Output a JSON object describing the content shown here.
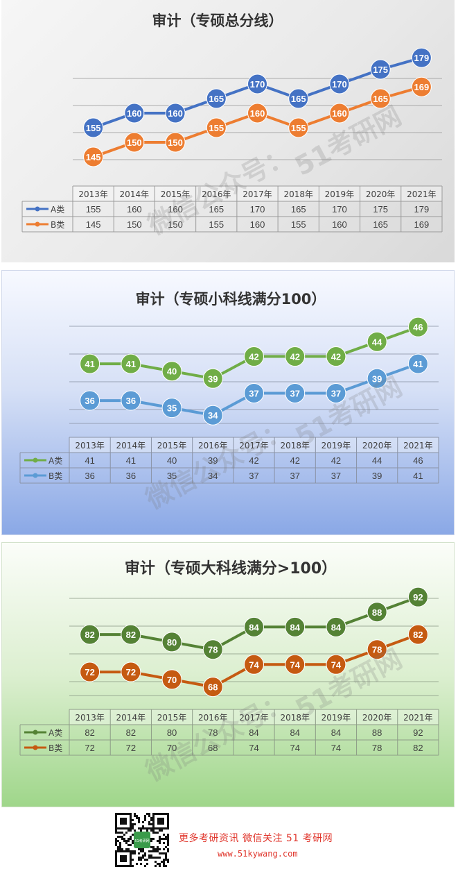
{
  "charts": [
    {
      "title": "审计（专硕总分线）",
      "colors": {
        "A": "#4472c4",
        "B": "#ed7d31",
        "grid": "#9a9a9a",
        "text": "#404040"
      },
      "watermark": [
        "51考研网",
        "微信公众号："
      ],
      "chart_data": {
        "type": "line",
        "categories": [
          "2013年",
          "2014年",
          "2015年",
          "2016年",
          "2017年",
          "2018年",
          "2019年",
          "2020年",
          "2021年"
        ],
        "series": [
          {
            "name": "A类",
            "values": [
              155,
              160,
              160,
              165,
              170,
              165,
              170,
              175,
              179
            ]
          },
          {
            "name": "B类",
            "values": [
              145,
              150,
              150,
              155,
              160,
              155,
              160,
              165,
              169
            ]
          }
        ],
        "ylim": [
          135,
          185
        ],
        "grid": true,
        "legend": "data-table"
      }
    },
    {
      "title": "审计（专硕小科线满分100）",
      "colors": {
        "A": "#70ad47",
        "B": "#5b9bd5",
        "grid": "#8a93a6",
        "text": "#404040"
      },
      "watermark": [
        "51考研网",
        "微信公众号："
      ],
      "chart_data": {
        "type": "line",
        "categories": [
          "2013年",
          "2014年",
          "2015年",
          "2016年",
          "2017年",
          "2018年",
          "2019年",
          "2020年",
          "2021年"
        ],
        "series": [
          {
            "name": "A类",
            "values": [
              41,
              41,
              40,
              39,
              42,
              42,
              42,
              44,
              46
            ]
          },
          {
            "name": "B类",
            "values": [
              36,
              36,
              35,
              34,
              37,
              37,
              37,
              39,
              41
            ]
          }
        ],
        "ylim": [
          31,
          48
        ],
        "grid": true,
        "legend": "data-table"
      }
    },
    {
      "title": "审计（专硕大科线满分>100）",
      "colors": {
        "A": "#548235",
        "B": "#c55a11",
        "grid": "#8d9c87",
        "text": "#404040"
      },
      "watermark": [
        "51考研网",
        "微信公众号："
      ],
      "chart_data": {
        "type": "line",
        "categories": [
          "2013年",
          "2014年",
          "2015年",
          "2016年",
          "2017年",
          "2018年",
          "2019年",
          "2020年",
          "2021年"
        ],
        "series": [
          {
            "name": "A类",
            "values": [
              82,
              82,
              80,
              78,
              84,
              84,
              84,
              88,
              92
            ]
          },
          {
            "name": "B类",
            "values": [
              72,
              72,
              70,
              68,
              74,
              74,
              74,
              78,
              82
            ]
          }
        ],
        "ylim": [
          62,
          95
        ],
        "grid": true,
        "legend": "data-table"
      }
    }
  ],
  "footer": {
    "promo": "更多考研资讯 微信关注 51 考研网",
    "site": "www.51kywang.com",
    "qr_icon": "qr-code-icon",
    "qr_badge": "51考研网"
  }
}
